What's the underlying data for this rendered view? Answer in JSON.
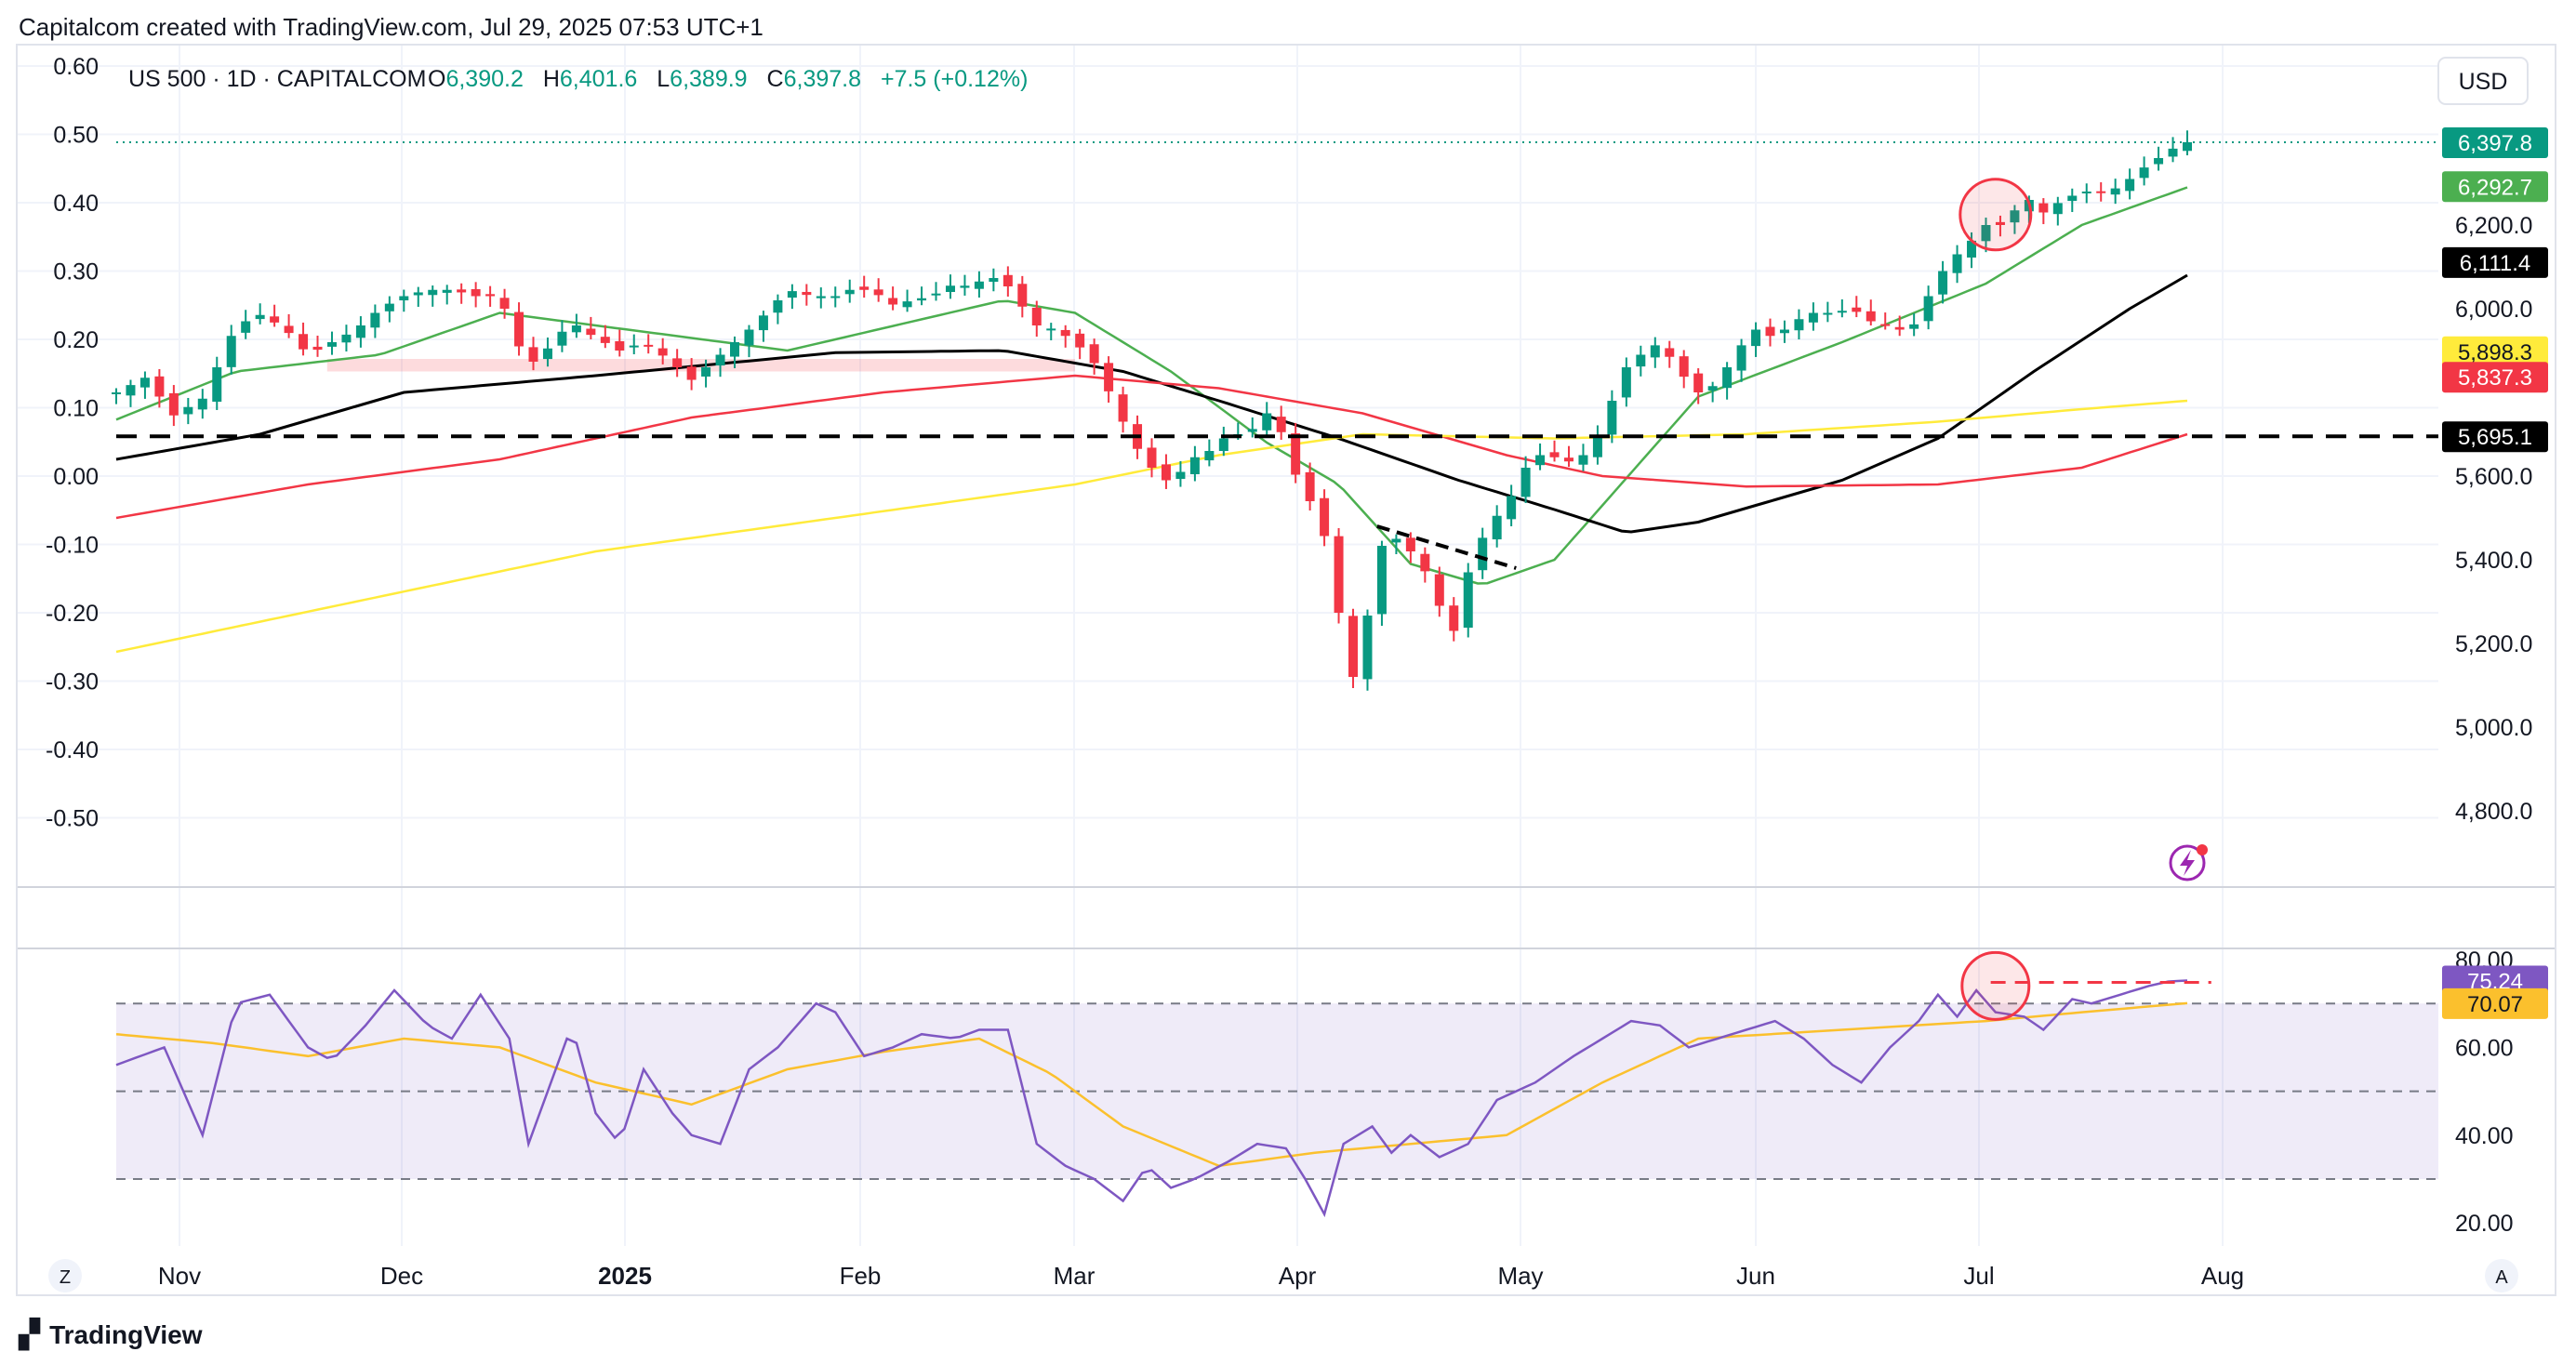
{
  "header": {
    "credit": "Capitalcom created with TradingView.com, Jul 29, 2025 07:53 UTC+1"
  },
  "footer": {
    "brand": "TradingView"
  },
  "legend": {
    "symbol": "US 500 · 1D · CAPITALCOM",
    "o_label": "O",
    "o": "6,390.2",
    "h_label": "H",
    "h": "6,401.6",
    "l_label": "L",
    "l": "6,389.9",
    "c_label": "C",
    "c": "6,397.8",
    "change": "+7.5 (+0.12%)"
  },
  "currency": "USD",
  "corner_left": "Z",
  "corner_right": "A",
  "colors": {
    "up": "#089981",
    "down": "#f23645",
    "ma20": "#4caf50",
    "ma50": "#000000",
    "ma100": "#f23645",
    "ma200": "#ffeb3b",
    "rsi": "#7e57c2",
    "rsi_ma": "#fbc02d",
    "grid": "#f0f3fa",
    "text": "#131722"
  },
  "chart_data": [
    {
      "type": "candlestick",
      "title": "US 500 · 1D · CAPITALCOM",
      "x_ticks": [
        "Nov",
        "Dec",
        "2025",
        "Feb",
        "Mar",
        "Apr",
        "May",
        "Jun",
        "Jul",
        "Aug"
      ],
      "y_right_ticks": [
        "6,200.0",
        "6,000.0",
        "5,600.0",
        "5,400.0",
        "5,200.0",
        "5,000.0",
        "4,800.0"
      ],
      "y_right_values": [
        6200,
        6000,
        5600,
        5400,
        5200,
        5000,
        4800
      ],
      "y_left_ticks": [
        "0.60",
        "0.50",
        "0.40",
        "0.30",
        "0.20",
        "0.10",
        "0.00",
        "-0.10",
        "-0.20",
        "-0.30",
        "-0.40",
        "-0.50"
      ],
      "y_left_values": [
        0.6,
        0.5,
        0.4,
        0.3,
        0.2,
        0.1,
        0.0,
        -0.1,
        -0.2,
        -0.3,
        -0.4,
        -0.5
      ],
      "ylim": [
        4760,
        6600
      ],
      "close_path": [
        [
          0,
          5800
        ],
        [
          6,
          5835
        ],
        [
          12,
          5745
        ],
        [
          18,
          5785
        ],
        [
          25,
          5960
        ],
        [
          30,
          5985
        ],
        [
          35,
          5955
        ],
        [
          40,
          5890
        ],
        [
          45,
          5920
        ],
        [
          50,
          5950
        ],
        [
          55,
          6000
        ],
        [
          60,
          6030
        ],
        [
          65,
          6045
        ],
        [
          70,
          6045
        ],
        [
          75,
          6030
        ],
        [
          80,
          6030
        ],
        [
          85,
          5880
        ],
        [
          88,
          5870
        ],
        [
          92,
          5940
        ],
        [
          96,
          5960
        ],
        [
          100,
          5930
        ],
        [
          105,
          5900
        ],
        [
          110,
          5920
        ],
        [
          115,
          5880
        ],
        [
          120,
          5830
        ],
        [
          124,
          5870
        ],
        [
          128,
          5910
        ],
        [
          132,
          5950
        ],
        [
          136,
          5995
        ],
        [
          140,
          6045
        ],
        [
          145,
          6030
        ],
        [
          150,
          6030
        ],
        [
          154,
          6050
        ],
        [
          158,
          6040
        ],
        [
          162,
          6010
        ],
        [
          166,
          6020
        ],
        [
          170,
          6030
        ],
        [
          174,
          6055
        ],
        [
          178,
          6055
        ],
        [
          182,
          6075
        ],
        [
          185,
          6070
        ],
        [
          188,
          6020
        ],
        [
          192,
          5960
        ],
        [
          196,
          5950
        ],
        [
          200,
          5920
        ],
        [
          204,
          5870
        ],
        [
          208,
          5780
        ],
        [
          212,
          5680
        ],
        [
          216,
          5620
        ],
        [
          220,
          5580
        ],
        [
          224,
          5640
        ],
        [
          228,
          5660
        ],
        [
          232,
          5700
        ],
        [
          236,
          5700
        ],
        [
          240,
          5750
        ],
        [
          244,
          5690
        ],
        [
          247,
          5560
        ],
        [
          250,
          5530
        ],
        [
          253,
          5420
        ],
        [
          256,
          5200
        ],
        [
          259,
          5080
        ],
        [
          262,
          5360
        ],
        [
          265,
          5470
        ],
        [
          268,
          5440
        ],
        [
          272,
          5400
        ],
        [
          276,
          5290
        ],
        [
          279,
          5230
        ],
        [
          282,
          5370
        ],
        [
          286,
          5480
        ],
        [
          290,
          5530
        ],
        [
          294,
          5620
        ],
        [
          298,
          5660
        ],
        [
          302,
          5630
        ],
        [
          306,
          5650
        ],
        [
          310,
          5710
        ],
        [
          314,
          5850
        ],
        [
          318,
          5890
        ],
        [
          322,
          5920
        ],
        [
          326,
          5850
        ],
        [
          330,
          5800
        ],
        [
          334,
          5820
        ],
        [
          338,
          5900
        ],
        [
          342,
          5950
        ],
        [
          346,
          5930
        ],
        [
          350,
          5970
        ],
        [
          354,
          5990
        ],
        [
          358,
          5990
        ],
        [
          362,
          6000
        ],
        [
          366,
          5970
        ],
        [
          370,
          5960
        ],
        [
          374,
          5940
        ],
        [
          378,
          6030
        ],
        [
          382,
          6110
        ],
        [
          386,
          6150
        ],
        [
          390,
          6200
        ],
        [
          394,
          6200
        ],
        [
          398,
          6270
        ],
        [
          402,
          6230
        ],
        [
          406,
          6260
        ],
        [
          410,
          6280
        ],
        [
          414,
          6280
        ],
        [
          418,
          6290
        ],
        [
          422,
          6330
        ],
        [
          426,
          6360
        ],
        [
          430,
          6390
        ],
        [
          432,
          6398
        ]
      ],
      "lines": [
        {
          "color": "#4caf50",
          "points": [
            [
              0,
              5735
            ],
            [
              25,
              5850
            ],
            [
              55,
              5890
            ],
            [
              80,
              5990
            ],
            [
              100,
              5960
            ],
            [
              140,
              5900
            ],
            [
              185,
              6020
            ],
            [
              200,
              5990
            ],
            [
              220,
              5850
            ],
            [
              240,
              5680
            ],
            [
              255,
              5580
            ],
            [
              270,
              5390
            ],
            [
              285,
              5340
            ],
            [
              300,
              5400
            ],
            [
              330,
              5790
            ],
            [
              360,
              5920
            ],
            [
              390,
              6060
            ],
            [
              410,
              6200
            ],
            [
              432,
              6290
            ]
          ]
        },
        {
          "color": "#000000",
          "points": [
            [
              0,
              5640
            ],
            [
              30,
              5700
            ],
            [
              60,
              5800
            ],
            [
              100,
              5840
            ],
            [
              150,
              5895
            ],
            [
              185,
              5900
            ],
            [
              210,
              5850
            ],
            [
              230,
              5780
            ],
            [
              255,
              5690
            ],
            [
              280,
              5590
            ],
            [
              300,
              5520
            ],
            [
              315,
              5465
            ],
            [
              330,
              5490
            ],
            [
              360,
              5590
            ],
            [
              380,
              5690
            ],
            [
              400,
              5850
            ],
            [
              420,
              6000
            ],
            [
              432,
              6080
            ]
          ]
        },
        {
          "color": "#f23645",
          "points": [
            [
              0,
              5500
            ],
            [
              40,
              5580
            ],
            [
              80,
              5640
            ],
            [
              120,
              5740
            ],
            [
              160,
              5800
            ],
            [
              200,
              5840
            ],
            [
              230,
              5810
            ],
            [
              260,
              5750
            ],
            [
              290,
              5650
            ],
            [
              310,
              5600
            ],
            [
              340,
              5575
            ],
            [
              380,
              5580
            ],
            [
              410,
              5620
            ],
            [
              432,
              5700
            ]
          ]
        },
        {
          "color": "#ffeb3b",
          "points": [
            [
              0,
              5180
            ],
            [
              50,
              5300
            ],
            [
              100,
              5420
            ],
            [
              150,
              5500
            ],
            [
              200,
              5580
            ],
            [
              230,
              5650
            ],
            [
              260,
              5700
            ],
            [
              300,
              5690
            ],
            [
              340,
              5700
            ],
            [
              380,
              5730
            ],
            [
              410,
              5760
            ],
            [
              432,
              5780
            ]
          ]
        }
      ],
      "support_level": 5695.1,
      "price_labels": [
        {
          "text": "6,397.8",
          "value": 6397.8,
          "color": "#089981"
        },
        {
          "text": "6,292.7",
          "value": 6292.7,
          "color": "#4caf50"
        },
        {
          "text": "6,111.4",
          "value": 6111.4,
          "color": "#000000"
        },
        {
          "text": "5,898.3",
          "value": 5898.3,
          "color": "#ffeb3b"
        },
        {
          "text": "5,837.3",
          "value": 5837.3,
          "color": "#f23645"
        },
        {
          "text": "5,695.1",
          "value": 5695.1,
          "color": "#000000"
        }
      ]
    },
    {
      "type": "line",
      "title": "RSI",
      "y_ticks": [
        "80.00",
        "60.00",
        "40.00",
        "20.00"
      ],
      "y_values": [
        80,
        60,
        40,
        20
      ],
      "ylim": [
        17,
        82
      ],
      "bands": [
        70,
        50,
        30
      ],
      "rsi_path": [
        [
          0,
          56
        ],
        [
          10,
          60
        ],
        [
          18,
          40
        ],
        [
          25,
          70
        ],
        [
          32,
          72
        ],
        [
          40,
          60
        ],
        [
          45,
          57
        ],
        [
          52,
          65
        ],
        [
          58,
          73
        ],
        [
          65,
          65
        ],
        [
          70,
          62
        ],
        [
          76,
          72
        ],
        [
          82,
          62
        ],
        [
          86,
          38
        ],
        [
          90,
          50
        ],
        [
          95,
          65
        ],
        [
          100,
          45
        ],
        [
          105,
          38
        ],
        [
          110,
          55
        ],
        [
          116,
          45
        ],
        [
          120,
          40
        ],
        [
          126,
          38
        ],
        [
          132,
          55
        ],
        [
          138,
          60
        ],
        [
          146,
          70
        ],
        [
          150,
          68
        ],
        [
          156,
          58
        ],
        [
          162,
          60
        ],
        [
          168,
          63
        ],
        [
          175,
          62
        ],
        [
          180,
          64
        ],
        [
          186,
          64
        ],
        [
          192,
          38
        ],
        [
          198,
          33
        ],
        [
          204,
          30
        ],
        [
          210,
          25
        ],
        [
          215,
          33
        ],
        [
          220,
          28
        ],
        [
          225,
          30
        ],
        [
          232,
          34
        ],
        [
          238,
          38
        ],
        [
          244,
          37
        ],
        [
          248,
          30
        ],
        [
          252,
          22
        ],
        [
          256,
          38
        ],
        [
          262,
          42
        ],
        [
          266,
          36
        ],
        [
          270,
          40
        ],
        [
          276,
          35
        ],
        [
          282,
          38
        ],
        [
          288,
          48
        ],
        [
          296,
          52
        ],
        [
          304,
          58
        ],
        [
          310,
          62
        ],
        [
          316,
          66
        ],
        [
          322,
          65
        ],
        [
          328,
          60
        ],
        [
          334,
          62
        ],
        [
          340,
          64
        ],
        [
          346,
          66
        ],
        [
          352,
          62
        ],
        [
          358,
          56
        ],
        [
          364,
          52
        ],
        [
          370,
          60
        ],
        [
          376,
          66
        ],
        [
          380,
          72
        ],
        [
          384,
          67
        ],
        [
          388,
          73
        ],
        [
          392,
          68
        ],
        [
          398,
          67
        ],
        [
          402,
          64
        ],
        [
          408,
          71
        ],
        [
          412,
          70
        ],
        [
          418,
          72
        ],
        [
          424,
          74
        ],
        [
          428,
          75
        ],
        [
          432,
          75.24
        ]
      ],
      "rsi_ma_path": [
        [
          0,
          63
        ],
        [
          20,
          61
        ],
        [
          40,
          58
        ],
        [
          60,
          62
        ],
        [
          80,
          60
        ],
        [
          100,
          52
        ],
        [
          120,
          47
        ],
        [
          140,
          55
        ],
        [
          160,
          59
        ],
        [
          180,
          62
        ],
        [
          195,
          54
        ],
        [
          210,
          42
        ],
        [
          230,
          33
        ],
        [
          250,
          36
        ],
        [
          270,
          38
        ],
        [
          290,
          40
        ],
        [
          310,
          52
        ],
        [
          330,
          62
        ],
        [
          360,
          64
        ],
        [
          390,
          66
        ],
        [
          410,
          68
        ],
        [
          432,
          70.07
        ]
      ],
      "labels": [
        {
          "text": "75.24",
          "value": 75.24,
          "color": "#7e57c2"
        },
        {
          "text": "70.07",
          "value": 70.07,
          "color": "#fbc02d"
        }
      ]
    }
  ]
}
